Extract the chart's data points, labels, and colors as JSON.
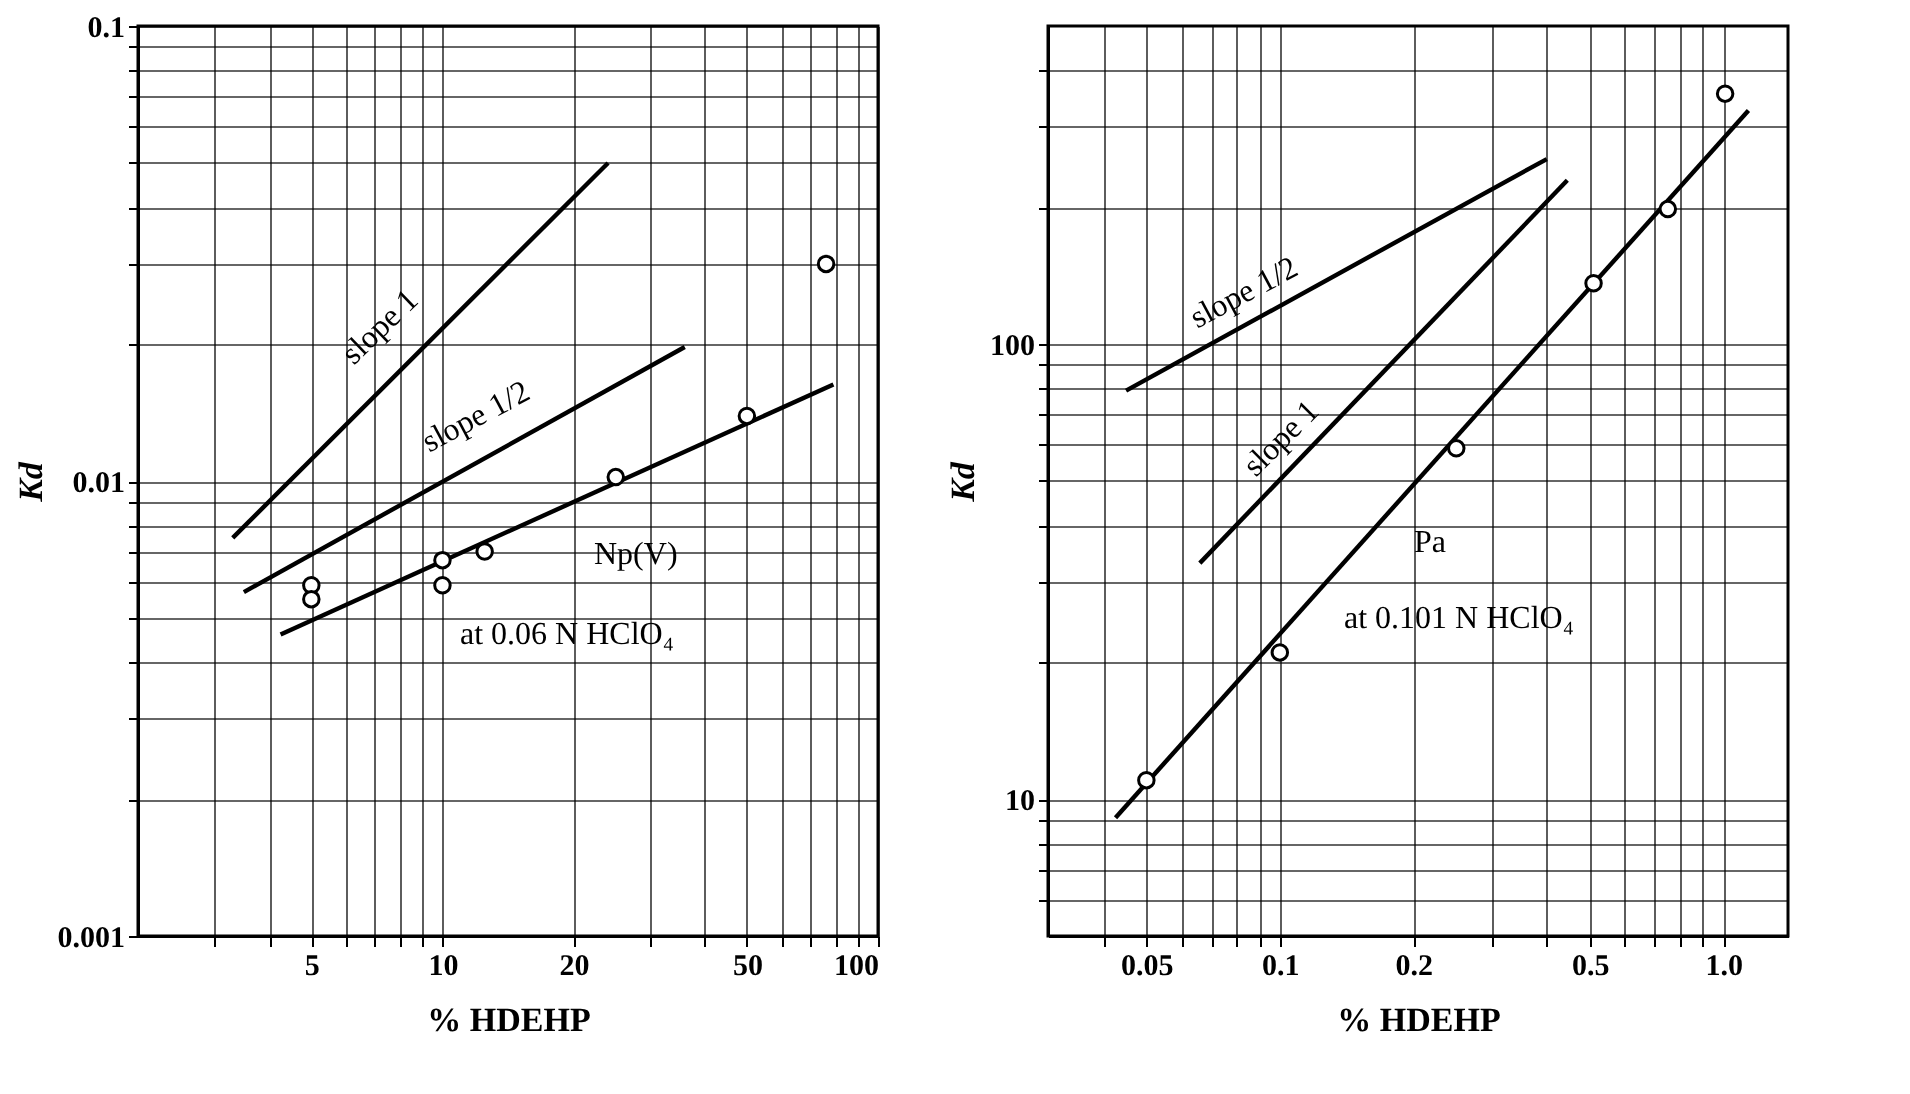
{
  "chart_data": [
    {
      "type": "scatter",
      "xlabel": "% HDEHP",
      "ylabel": "Kd",
      "log": "xy",
      "grid": true,
      "xlim": [
        2,
        100
      ],
      "xticks": [
        {
          "value": 3,
          "label": null
        },
        {
          "value": 4,
          "label": null
        },
        5,
        {
          "value": 6,
          "label": null
        },
        {
          "value": 7,
          "label": null
        },
        {
          "value": 8,
          "label": null
        },
        {
          "value": 9,
          "label": null
        },
        10,
        20,
        {
          "value": 30,
          "label": null
        },
        {
          "value": 40,
          "label": null
        },
        50,
        {
          "value": 60,
          "label": null
        },
        {
          "value": 70,
          "label": null
        },
        {
          "value": 80,
          "label": null
        },
        {
          "value": 90,
          "label": null
        },
        100
      ],
      "ylim": [
        0.001,
        0.1
      ],
      "yticks": [
        0.001,
        {
          "value": 0.002,
          "label": null
        },
        {
          "value": 0.003,
          "label": null
        },
        {
          "value": 0.004,
          "label": null
        },
        {
          "value": 0.005,
          "label": null
        },
        {
          "value": 0.006,
          "label": null
        },
        {
          "value": 0.007,
          "label": null
        },
        {
          "value": 0.008,
          "label": null
        },
        {
          "value": 0.009,
          "label": null
        },
        0.01,
        {
          "value": 0.02,
          "label": null
        },
        {
          "value": 0.03,
          "label": null
        },
        {
          "value": 0.04,
          "label": null
        },
        {
          "value": 0.05,
          "label": null
        },
        {
          "value": 0.06,
          "label": null
        },
        {
          "value": 0.07,
          "label": null
        },
        {
          "value": 0.08,
          "label": null
        },
        {
          "value": 0.09,
          "label": null
        },
        0.1
      ],
      "series": [
        {
          "type": "line",
          "color": "#000000",
          "marker": "none",
          "line_style": "solid",
          "x": [
            3.3,
            24
          ],
          "values": [
            0.0075,
            0.05
          ]
        },
        {
          "type": "line",
          "color": "#000000",
          "marker": "none",
          "line_style": "solid",
          "x": [
            3.5,
            36
          ],
          "values": [
            0.0057,
            0.0197
          ]
        },
        {
          "type": "line",
          "color": "#000000",
          "marker": "none",
          "line_style": "solid",
          "x": [
            4.25,
            79
          ],
          "values": [
            0.0046,
            0.0163
          ]
        },
        {
          "color": "#000000",
          "marker": "circle",
          "x": [
            5,
            5,
            10,
            10,
            12.5,
            25,
            50,
            76
          ],
          "values": [
            0.0059,
            0.0055,
            0.0067,
            0.0059,
            0.007,
            0.0102,
            0.0139,
            0.03
          ]
        }
      ],
      "annotations": [
        "slope 1",
        "slope 1/2",
        "Np(V)",
        "at 0.06 N HClO₄"
      ]
    },
    {
      "type": "scatter",
      "xlabel": "% HDEHP",
      "ylabel": "Kd",
      "log": "xy",
      "grid": true,
      "xlim": [
        0.03,
        1.4
      ],
      "xticks": [
        {
          "value": 0.04,
          "label": null
        },
        0.05,
        {
          "value": 0.06,
          "label": null
        },
        {
          "value": 0.07,
          "label": null
        },
        {
          "value": 0.08,
          "label": null
        },
        {
          "value": 0.09,
          "label": null
        },
        0.1,
        0.2,
        {
          "value": 0.3,
          "label": null
        },
        {
          "value": 0.4,
          "label": null
        },
        0.5,
        {
          "value": 0.6,
          "label": null
        },
        {
          "value": 0.7,
          "label": null
        },
        {
          "value": 0.8,
          "label": null
        },
        {
          "value": 0.9,
          "label": null
        },
        {
          "value": 1,
          "label": "1.0"
        }
      ],
      "ylim": [
        5,
        500
      ],
      "yticks": [
        {
          "value": 6,
          "label": null
        },
        {
          "value": 7,
          "label": null
        },
        {
          "value": 8,
          "label": null
        },
        {
          "value": 9,
          "label": null
        },
        10,
        {
          "value": 20,
          "label": null
        },
        {
          "value": 30,
          "label": null
        },
        {
          "value": 40,
          "label": null
        },
        {
          "value": 50,
          "label": null
        },
        {
          "value": 60,
          "label": null
        },
        {
          "value": 70,
          "label": null
        },
        {
          "value": 80,
          "label": null
        },
        {
          "value": 90,
          "label": null
        },
        100,
        {
          "value": 200,
          "label": null
        },
        {
          "value": 300,
          "label": null
        },
        {
          "value": 400,
          "label": null
        }
      ],
      "series": [
        {
          "type": "line",
          "color": "#000000",
          "marker": "none",
          "line_style": "solid",
          "x": [
            0.045,
            0.4
          ],
          "values": [
            79,
            255
          ]
        },
        {
          "type": "line",
          "color": "#000000",
          "marker": "none",
          "line_style": "solid",
          "x": [
            0.066,
            0.445
          ],
          "values": [
            33,
            229
          ]
        },
        {
          "type": "line",
          "color": "#000000",
          "marker": "none",
          "line_style": "solid",
          "x": [
            0.0426,
            1.14
          ],
          "values": [
            9.1,
            326
          ]
        },
        {
          "color": "#000000",
          "marker": "circle",
          "x": [
            0.05,
            0.1,
            0.25,
            0.51,
            0.75,
            1.01
          ],
          "values": [
            11,
            21,
            59,
            136,
            198,
            355
          ]
        }
      ],
      "annotations": [
        "slope 1/2",
        "slope 1",
        "Pa",
        "at 0.101 N HClO₄"
      ]
    }
  ]
}
